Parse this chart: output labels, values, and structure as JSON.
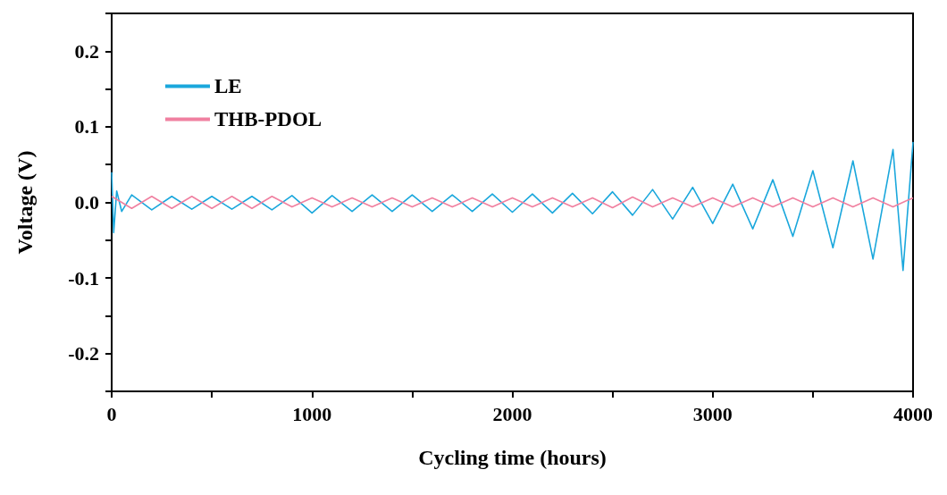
{
  "chart_data": {
    "type": "line",
    "xlabel": "Cycling time (hours)",
    "ylabel": "Voltage (V)",
    "xlim": [
      0,
      4000
    ],
    "ylim": [
      -0.25,
      0.25
    ],
    "xticks": [
      0,
      {
        "value": 500,
        "label": null
      },
      1000,
      {
        "value": 1500,
        "label": null
      },
      2000,
      {
        "value": 2500,
        "label": null
      },
      3000,
      {
        "value": 3500,
        "label": null
      },
      4000
    ],
    "yticks": [
      {
        "value": -0.25,
        "label": null
      },
      -0.2,
      {
        "value": -0.15,
        "label": null
      },
      -0.1,
      {
        "value": -0.05,
        "label": null
      },
      {
        "value": 0,
        "label": "0.0"
      },
      {
        "value": 0.05,
        "label": null
      },
      0.1,
      {
        "value": 0.15,
        "label": null
      },
      0.2,
      {
        "value": 0.25,
        "label": null
      }
    ],
    "legend": "top left",
    "grid": false,
    "marker": "none",
    "line_style": "solid",
    "series": [
      {
        "name": "LE",
        "color": "#1aa7dc",
        "x": [
          0,
          10,
          25,
          50,
          100,
          200,
          300,
          400,
          500,
          600,
          700,
          800,
          900,
          1000,
          1100,
          1200,
          1300,
          1400,
          1500,
          1600,
          1700,
          1800,
          1900,
          2000,
          2100,
          2200,
          2300,
          2400,
          2500,
          2600,
          2700,
          2800,
          2900,
          3000,
          3100,
          3200,
          3300,
          3400,
          3500,
          3600,
          3700,
          3800,
          3900,
          3950,
          4000
        ],
        "values": [
          0.04,
          -0.04,
          0.015,
          -0.012,
          0.01,
          -0.01,
          0.008,
          -0.009,
          0.008,
          -0.009,
          0.008,
          -0.01,
          0.009,
          -0.014,
          0.009,
          -0.012,
          0.01,
          -0.012,
          0.01,
          -0.012,
          0.01,
          -0.012,
          0.011,
          -0.013,
          0.011,
          -0.014,
          0.012,
          -0.015,
          0.014,
          -0.017,
          0.017,
          -0.022,
          0.02,
          -0.028,
          0.024,
          -0.035,
          0.03,
          -0.045,
          0.042,
          -0.06,
          0.055,
          -0.075,
          0.07,
          -0.09,
          0.08
        ]
      },
      {
        "name": "THB-PDOL",
        "color": "#f080a0",
        "x": [
          0,
          100,
          200,
          300,
          400,
          500,
          600,
          700,
          800,
          900,
          1000,
          1100,
          1200,
          1300,
          1400,
          1500,
          1600,
          1700,
          1800,
          1900,
          2000,
          2100,
          2200,
          2300,
          2400,
          2500,
          2600,
          2700,
          2800,
          2900,
          3000,
          3100,
          3200,
          3300,
          3400,
          3500,
          3600,
          3700,
          3800,
          3900,
          4000
        ],
        "values": [
          0.008,
          -0.008,
          0.008,
          -0.008,
          0.008,
          -0.008,
          0.008,
          -0.008,
          0.008,
          -0.006,
          0.006,
          -0.006,
          0.006,
          -0.006,
          0.006,
          -0.006,
          0.006,
          -0.006,
          0.006,
          -0.006,
          0.006,
          -0.006,
          0.006,
          -0.006,
          0.006,
          -0.007,
          0.007,
          -0.006,
          0.006,
          -0.006,
          0.006,
          -0.006,
          0.006,
          -0.006,
          0.006,
          -0.006,
          0.006,
          -0.006,
          0.006,
          -0.006,
          0.006
        ]
      }
    ]
  }
}
